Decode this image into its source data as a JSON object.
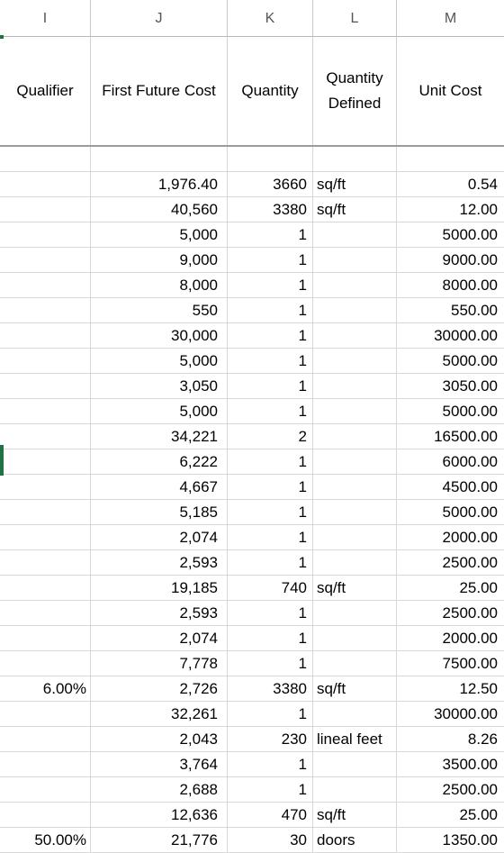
{
  "column_headers": [
    "I",
    "J",
    "K",
    "L",
    "M"
  ],
  "table_headers": {
    "qualifier": "Qualifier",
    "first_future_cost": "First Future Cost",
    "quantity": "Quantity",
    "quantity_defined": "Quantity Defined",
    "unit_cost": "Unit Cost"
  },
  "rows": [
    {
      "i": "",
      "j": "",
      "k": "",
      "l": "",
      "m": ""
    },
    {
      "i": "",
      "j": "1,976.40",
      "k": "3660",
      "l": "sq/ft",
      "m": "0.54"
    },
    {
      "i": "",
      "j": "40,560",
      "k": "3380",
      "l": "sq/ft",
      "m": "12.00"
    },
    {
      "i": "",
      "j": "5,000",
      "k": "1",
      "l": "",
      "m": "5000.00"
    },
    {
      "i": "",
      "j": "9,000",
      "k": "1",
      "l": "",
      "m": "9000.00"
    },
    {
      "i": "",
      "j": "8,000",
      "k": "1",
      "l": "",
      "m": "8000.00"
    },
    {
      "i": "",
      "j": "550",
      "k": "1",
      "l": "",
      "m": "550.00"
    },
    {
      "i": "",
      "j": "30,000",
      "k": "1",
      "l": "",
      "m": "30000.00"
    },
    {
      "i": "",
      "j": "5,000",
      "k": "1",
      "l": "",
      "m": "5000.00"
    },
    {
      "i": "",
      "j": "3,050",
      "k": "1",
      "l": "",
      "m": "3050.00"
    },
    {
      "i": "",
      "j": "5,000",
      "k": "1",
      "l": "",
      "m": "5000.00"
    },
    {
      "i": "",
      "j": "34,221",
      "k": "2",
      "l": "",
      "m": "16500.00"
    },
    {
      "i": "",
      "j": "6,222",
      "k": "1",
      "l": "",
      "m": "6000.00"
    },
    {
      "i": "",
      "j": "4,667",
      "k": "1",
      "l": "",
      "m": "4500.00"
    },
    {
      "i": "",
      "j": "5,185",
      "k": "1",
      "l": "",
      "m": "5000.00"
    },
    {
      "i": "",
      "j": "2,074",
      "k": "1",
      "l": "",
      "m": "2000.00"
    },
    {
      "i": "",
      "j": "2,593",
      "k": "1",
      "l": "",
      "m": "2500.00"
    },
    {
      "i": "",
      "j": "19,185",
      "k": "740",
      "l": "sq/ft",
      "m": "25.00"
    },
    {
      "i": "",
      "j": "2,593",
      "k": "1",
      "l": "",
      "m": "2500.00"
    },
    {
      "i": "",
      "j": "2,074",
      "k": "1",
      "l": "",
      "m": "2000.00"
    },
    {
      "i": "",
      "j": "7,778",
      "k": "1",
      "l": "",
      "m": "7500.00"
    },
    {
      "i": "6.00%",
      "j": "2,726",
      "k": "3380",
      "l": "sq/ft",
      "m": "12.50"
    },
    {
      "i": "",
      "j": "32,261",
      "k": "1",
      "l": "",
      "m": "30000.00"
    },
    {
      "i": "",
      "j": "2,043",
      "k": "230",
      "l": "lineal feet",
      "m": "8.26"
    },
    {
      "i": "",
      "j": "3,764",
      "k": "1",
      "l": "",
      "m": "3500.00"
    },
    {
      "i": "",
      "j": "2,688",
      "k": "1",
      "l": "",
      "m": "2500.00"
    },
    {
      "i": "",
      "j": "12,636",
      "k": "470",
      "l": "sq/ft",
      "m": "25.00"
    },
    {
      "i": "50.00%",
      "j": "21,776",
      "k": "30",
      "l": "doors",
      "m": "1350.00"
    }
  ],
  "colors": {
    "selection_green": "#1f7244"
  }
}
